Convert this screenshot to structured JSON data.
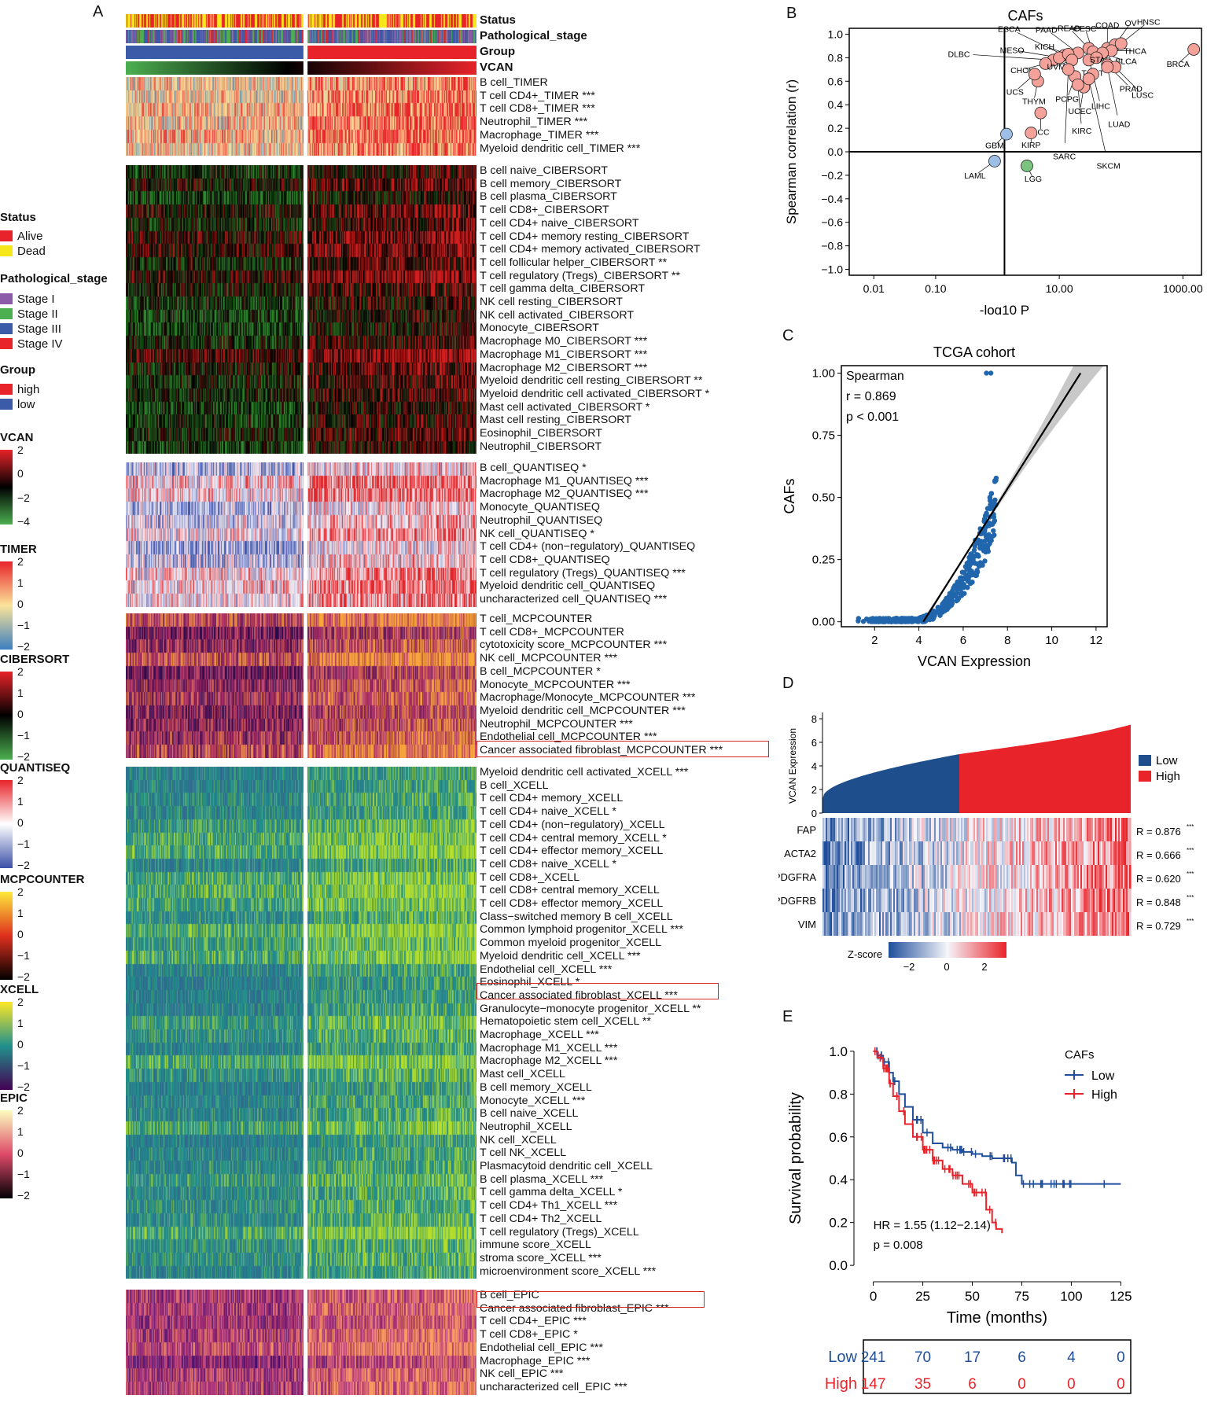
{
  "panel_labels": {
    "a": "A",
    "b": "B",
    "c": "C",
    "d": "D",
    "e": "E"
  },
  "annotation_tracks": [
    "Status",
    "Pathological_stage",
    "Group",
    "VCAN"
  ],
  "legends": {
    "status": {
      "title": "Status",
      "items": [
        {
          "label": "Alive",
          "color": "#e8232a"
        },
        {
          "label": "Dead",
          "color": "#f6e71a"
        }
      ]
    },
    "stage": {
      "title": "Pathological_stage",
      "items": [
        {
          "label": "Stage I",
          "color": "#8c5aa8"
        },
        {
          "label": "Stage II",
          "color": "#4caf50"
        },
        {
          "label": "Stage III",
          "color": "#3b5ba8"
        },
        {
          "label": "Stage IV",
          "color": "#e8232a"
        }
      ]
    },
    "group": {
      "title": "Group",
      "items": [
        {
          "label": "high",
          "color": "#e8232a"
        },
        {
          "label": "low",
          "color": "#3b5ba8"
        }
      ]
    },
    "scales": [
      {
        "title": "VCAN",
        "ticks": [
          "2",
          "0",
          "−2",
          "−4"
        ],
        "colors": [
          "#e8232a",
          "#000000",
          "#4caf50"
        ]
      },
      {
        "title": "TIMER",
        "ticks": [
          "2",
          "1",
          "0",
          "−1",
          "−2"
        ],
        "colors": [
          "#e8232a",
          "#fbe39a",
          "#3b7fc0"
        ]
      },
      {
        "title": "CIBERSORT",
        "ticks": [
          "2",
          "1",
          "0",
          "−1",
          "−2"
        ],
        "colors": [
          "#e8232a",
          "#000000",
          "#4caf50"
        ]
      },
      {
        "title": "QUANTISEQ",
        "ticks": [
          "2",
          "1",
          "0",
          "−1",
          "−2"
        ],
        "colors": [
          "#e8232a",
          "#ffffff",
          "#3b4fa8"
        ]
      },
      {
        "title": "MCPCOUNTER",
        "ticks": [
          "2",
          "1",
          "0",
          "−1",
          "−2"
        ],
        "colors": [
          "#fce93a",
          "#e0301e",
          "#000000"
        ]
      },
      {
        "title": "XCELL",
        "ticks": [
          "2",
          "1",
          "0",
          "−1",
          "−2"
        ],
        "colors": [
          "#fde725",
          "#21918c",
          "#440154"
        ]
      },
      {
        "title": "EPIC",
        "ticks": [
          "2",
          "1",
          "0",
          "−1",
          "−2"
        ],
        "colors": [
          "#fcfdbf",
          "#de4968",
          "#000004"
        ]
      }
    ]
  },
  "heatmap_blocks": [
    {
      "method": "TIMER",
      "palette": [
        "#3b7fc0",
        "#fbe39a",
        "#e8232a"
      ],
      "rows": [
        "B cell_TIMER",
        "T cell CD4+_TIMER ***",
        "T cell CD8+_TIMER ***",
        "Neutrophil_TIMER ***",
        "Macrophage_TIMER ***",
        "Myeloid dendritic cell_TIMER ***"
      ]
    },
    {
      "method": "CIBERSORT",
      "palette": [
        "#2e8b2e",
        "#000000",
        "#d21e1e"
      ],
      "rows": [
        "B cell naive_CIBERSORT",
        "B cell memory_CIBERSORT",
        "B cell plasma_CIBERSORT",
        "T cell CD8+_CIBERSORT",
        "T cell CD4+ naive_CIBERSORT",
        "T cell CD4+ memory resting_CIBERSORT",
        "T cell CD4+ memory activated_CIBERSORT",
        "T cell follicular helper_CIBERSORT **",
        "T cell regulatory (Tregs)_CIBERSORT **",
        "T cell gamma delta_CIBERSORT",
        "NK cell resting_CIBERSORT",
        "NK cell activated_CIBERSORT",
        "Monocyte_CIBERSORT",
        "Macrophage M0_CIBERSORT ***",
        "Macrophage M1_CIBERSORT ***",
        "Macrophage M2_CIBERSORT ***",
        "Myeloid dendritic cell resting_CIBERSORT **",
        "Myeloid dendritic cell activated_CIBERSORT *",
        "Mast cell activated_CIBERSORT *",
        "Mast cell resting_CIBERSORT",
        "Eosinophil_CIBERSORT",
        "Neutrophil_CIBERSORT"
      ]
    },
    {
      "method": "QUANTISEQ",
      "palette": [
        "#3b4fa8",
        "#f4f4fb",
        "#e0262a"
      ],
      "rows": [
        "B cell_QUANTISEQ *",
        "Macrophage M1_QUANTISEQ ***",
        "Macrophage M2_QUANTISEQ ***",
        "Monocyte_QUANTISEQ",
        "Neutrophil_QUANTISEQ",
        "NK cell_QUANTISEQ *",
        "T cell CD4+ (non−regulatory)_QUANTISEQ",
        "T cell CD8+_QUANTISEQ",
        "T cell regulatory (Tregs)_QUANTISEQ ***",
        "Myeloid dendritic cell_QUANTISEQ",
        "uncharacterized cell_QUANTISEQ ***"
      ]
    },
    {
      "method": "MCPCOUNTER",
      "palette": [
        "#2a0a4a",
        "#b0306a",
        "#f7a838"
      ],
      "rows": [
        "T cell_MCPCOUNTER",
        "T cell CD8+_MCPCOUNTER",
        "cytotoxicity score_MCPCOUNTER ***",
        "NK cell_MCPCOUNTER ***",
        "B cell_MCPCOUNTER *",
        "Monocyte_MCPCOUNTER ***",
        "Macrophage/Monocyte_MCPCOUNTER ***",
        "Myeloid dendritic cell_MCPCOUNTER ***",
        "Neutrophil_MCPCOUNTER ***",
        "Endothelial cell_MCPCOUNTER ***",
        "Cancer associated fibroblast_MCPCOUNTER ***"
      ]
    },
    {
      "method": "XCELL",
      "palette": [
        "#31688e",
        "#21918c",
        "#b5de2b"
      ],
      "rows": [
        "Myeloid dendritic cell activated_XCELL ***",
        "B cell_XCELL",
        "T cell CD4+ memory_XCELL",
        "T cell CD4+ naive_XCELL *",
        "T cell CD4+ (non−regulatory)_XCELL",
        "T cell CD4+ central memory_XCELL *",
        "T cell CD4+ effector memory_XCELL",
        "T cell CD8+ naive_XCELL *",
        "T cell CD8+_XCELL",
        "T cell CD8+ central memory_XCELL",
        "T cell CD8+ effector memory_XCELL",
        "Class−switched memory B cell_XCELL",
        "Common lymphoid progenitor_XCELL ***",
        "Common myeloid progenitor_XCELL",
        "Myeloid dendritic cell_XCELL ***",
        "Endothelial cell_XCELL ***",
        "Eosinophil_XCELL *",
        "Cancer associated fibroblast_XCELL ***",
        "Granulocyte−monocyte progenitor_XCELL **",
        "Hematopoietic stem cell_XCELL **",
        "Macrophage_XCELL ***",
        "Macrophage M1_XCELL ***",
        "Macrophage M2_XCELL ***",
        "Mast cell_XCELL",
        "B cell memory_XCELL",
        "Monocyte_XCELL ***",
        "B cell naive_XCELL",
        "Neutrophil_XCELL",
        "NK cell_XCELL",
        "T cell NK_XCELL",
        "Plasmacytoid dendritic cell_XCELL",
        "B cell plasma_XCELL ***",
        "T cell gamma delta_XCELL *",
        "T cell CD4+ Th1_XCELL ***",
        "T cell CD4+ Th2_XCELL",
        "T cell regulatory (Tregs)_XCELL",
        "immune score_XCELL",
        "stroma score_XCELL ***",
        "microenvironment score_XCELL ***"
      ]
    },
    {
      "method": "EPIC",
      "palette": [
        "#3a0f6e",
        "#b5367a",
        "#fb9f60"
      ],
      "rows": [
        "B cell_EPIC",
        "Cancer associated fibroblast_EPIC ***",
        "T cell CD4+_EPIC ***",
        "T cell CD8+_EPIC *",
        "Endothelial cell_EPIC ***",
        "Macrophage_EPIC ***",
        "NK cell_EPIC ***",
        "uncharacterized cell_EPIC ***"
      ]
    }
  ],
  "chart_data": [
    {
      "panel": "B",
      "type": "scatter",
      "title": "CAFs",
      "xlabel": "-log10 P",
      "ylabel": "Spearman correlation (r)",
      "xscale": "log",
      "xticks": [
        "0.01",
        "0.10",
        "10.00",
        "1000.00"
      ],
      "yticks": [
        "1.0",
        "0.8",
        "0.6",
        "0.4",
        "0.2",
        "0.0",
        "−0.2",
        "−0.4",
        "−0.6",
        "−0.8",
        "−1.0"
      ],
      "ylim": [
        -1.05,
        1.05
      ],
      "points": [
        {
          "label": "ESCA",
          "x": 12,
          "y": 0.82
        },
        {
          "label": "PAAD",
          "x": 20,
          "y": 0.84
        },
        {
          "label": "READ",
          "x": 30,
          "y": 0.88
        },
        {
          "label": "CESC",
          "x": 35,
          "y": 0.85
        },
        {
          "label": "COAD",
          "x": 60,
          "y": 0.88
        },
        {
          "label": "OV",
          "x": 80,
          "y": 0.91
        },
        {
          "label": "HNSC",
          "x": 100,
          "y": 0.92
        },
        {
          "label": "DLBC",
          "x": 8,
          "y": 0.78
        },
        {
          "label": "MESO",
          "x": 10,
          "y": 0.8
        },
        {
          "label": "KICH",
          "x": 14,
          "y": 0.83
        },
        {
          "label": "THCA",
          "x": 70,
          "y": 0.86
        },
        {
          "label": "BLCA",
          "x": 50,
          "y": 0.84
        },
        {
          "label": "BRCA",
          "x": 1500,
          "y": 0.87
        },
        {
          "label": "CHOL",
          "x": 6,
          "y": 0.75
        },
        {
          "label": "UVM",
          "x": 16,
          "y": 0.78
        },
        {
          "label": "TGCT",
          "x": 30,
          "y": 0.78
        },
        {
          "label": "STAD",
          "x": 40,
          "y": 0.8
        },
        {
          "label": "THYM",
          "x": 4.5,
          "y": 0.6
        },
        {
          "label": "PCPG",
          "x": 18,
          "y": 0.64
        },
        {
          "label": "PRAD",
          "x": 60,
          "y": 0.74
        },
        {
          "label": "UCS",
          "x": 4,
          "y": 0.66
        },
        {
          "label": "ACC",
          "x": 5,
          "y": 0.33
        },
        {
          "label": "UCEC",
          "x": 25,
          "y": 0.55
        },
        {
          "label": "LIHC",
          "x": 35,
          "y": 0.66
        },
        {
          "label": "LUSC",
          "x": 80,
          "y": 0.72
        },
        {
          "label": "GBM",
          "x": 1.4,
          "y": 0.15
        },
        {
          "label": "KIRP",
          "x": 3.5,
          "y": 0.16
        },
        {
          "label": "KIRC",
          "x": 20,
          "y": 0.57
        },
        {
          "label": "LUAD",
          "x": 60,
          "y": 0.72
        },
        {
          "label": "SARC",
          "x": 14,
          "y": 0.7
        },
        {
          "label": "SKCM",
          "x": 30,
          "y": 0.62
        },
        {
          "label": "LAML",
          "x": 0.9,
          "y": -0.08
        },
        {
          "label": "LGG",
          "x": 3,
          "y": -0.12
        }
      ]
    },
    {
      "panel": "C",
      "type": "scatter",
      "title": "TCGA cohort",
      "xlabel": "VCAN Expression",
      "ylabel": "CAFs",
      "xlim": [
        0.5,
        12.5
      ],
      "ylim": [
        -0.02,
        1.03
      ],
      "xticks": [
        "2",
        "4",
        "6",
        "8",
        "10",
        "12"
      ],
      "yticks": [
        "1.00",
        "0.75",
        "0.50",
        "0.25",
        "0.00"
      ],
      "stats": [
        "Spearman",
        "r = 0.869",
        "p < 0.001"
      ],
      "fit": {
        "x": [
          4.2,
          11.3
        ],
        "y": [
          0.0,
          1.0
        ]
      }
    },
    {
      "panel": "D",
      "type": "bar",
      "ylabel": "VCAN Expression",
      "yticks": [
        "8",
        "6",
        "4",
        "2",
        "0"
      ],
      "ylim": [
        0,
        8
      ],
      "series": [
        {
          "name": "Low",
          "color": "#1f4e8c",
          "range": [
            1.2,
            5.0
          ]
        },
        {
          "name": "High",
          "color": "#e8232a",
          "range": [
            5.0,
            7.5
          ]
        }
      ],
      "heatmap_genes": [
        "FAP",
        "ACTA2",
        "PDGFRA",
        "PDGFRB",
        "VIM"
      ],
      "correlations": [
        "R = 0.876",
        "R = 0.666",
        "R = 0.620",
        "R = 0.848",
        "R = 0.729"
      ],
      "sig": "***",
      "zscore": {
        "title": "Z-score",
        "ticks": [
          "−2",
          "0",
          "2"
        ]
      }
    },
    {
      "panel": "E",
      "type": "line",
      "title": "CAFs",
      "xlabel": "Time (months)",
      "ylabel": "Survival probability",
      "xlim": [
        0,
        125
      ],
      "ylim": [
        0,
        1
      ],
      "xticks": [
        "0",
        "25",
        "50",
        "75",
        "100",
        "125"
      ],
      "yticks": [
        "1.0",
        "0.8",
        "0.6",
        "0.4",
        "0.2",
        "0.0"
      ],
      "series": [
        {
          "name": "Low",
          "color": "#1f4e9a",
          "x": [
            0,
            2,
            5,
            8,
            10,
            13,
            16,
            20,
            25,
            30,
            35,
            40,
            45,
            50,
            55,
            60,
            65,
            70,
            72,
            75,
            100,
            120,
            125
          ],
          "y": [
            1.0,
            0.98,
            0.95,
            0.9,
            0.86,
            0.8,
            0.74,
            0.68,
            0.62,
            0.57,
            0.55,
            0.54,
            0.53,
            0.52,
            0.51,
            0.5,
            0.5,
            0.48,
            0.42,
            0.38,
            0.38,
            0.38,
            0.38
          ]
        },
        {
          "name": "High",
          "color": "#e8232a",
          "x": [
            0,
            2,
            5,
            8,
            10,
            13,
            16,
            20,
            25,
            30,
            35,
            40,
            45,
            50,
            55,
            57,
            60,
            62,
            65
          ],
          "y": [
            1.0,
            0.97,
            0.92,
            0.85,
            0.79,
            0.72,
            0.66,
            0.6,
            0.54,
            0.49,
            0.45,
            0.42,
            0.38,
            0.34,
            0.34,
            0.26,
            0.2,
            0.17,
            0.15
          ]
        }
      ],
      "annotations": [
        "HR = 1.55 (1.12−2.14)",
        "p = 0.008"
      ],
      "risk_table": {
        "groups": [
          {
            "name": "Low",
            "color": "#1f4e9a",
            "values": [
              "241",
              "70",
              "17",
              "6",
              "4",
              "0"
            ]
          },
          {
            "name": "High",
            "color": "#e8232a",
            "values": [
              "147",
              "35",
              "6",
              "0",
              "0",
              "0"
            ]
          }
        ]
      }
    }
  ]
}
